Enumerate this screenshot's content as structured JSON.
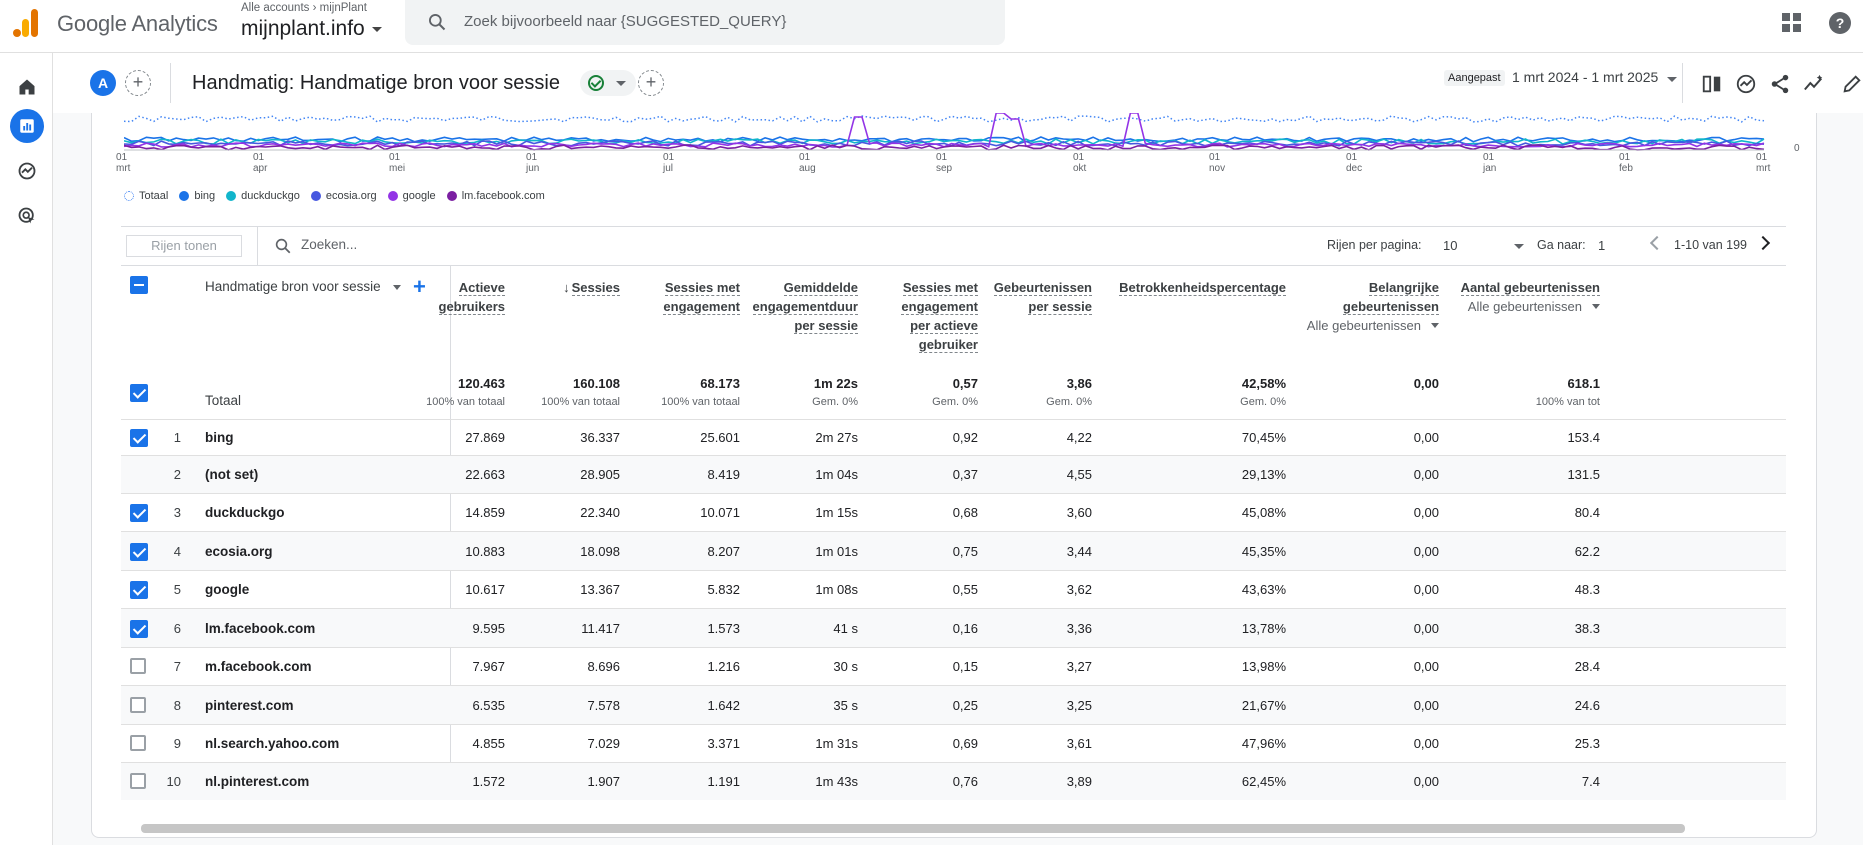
{
  "topbar": {
    "app_title": "Google Analytics",
    "account_crumb": "Alle accounts",
    "property_crumb": "mijnPlant",
    "property_name": "mijnplant.info",
    "search_placeholder": "Zoek bijvoorbeeld naar {SUGGESTED_QUERY}",
    "help_glyph": "?"
  },
  "report": {
    "avatar_letter": "A",
    "add_compare": "+",
    "title": "Handmatig: Handmatige bron voor sessie",
    "add_tab": "+",
    "date_label": "Aangepast",
    "date_range": "1 mrt 2024 - 1 mrt 2025"
  },
  "chart": {
    "y_axis_zero": "0",
    "x_ticks": [
      {
        "day": "01",
        "month": "mrt"
      },
      {
        "day": "01",
        "month": "apr"
      },
      {
        "day": "01",
        "month": "mei"
      },
      {
        "day": "01",
        "month": "jun"
      },
      {
        "day": "01",
        "month": "jul"
      },
      {
        "day": "01",
        "month": "aug"
      },
      {
        "day": "01",
        "month": "sep"
      },
      {
        "day": "01",
        "month": "okt"
      },
      {
        "day": "01",
        "month": "nov"
      },
      {
        "day": "01",
        "month": "dec"
      },
      {
        "day": "01",
        "month": "jan"
      },
      {
        "day": "01",
        "month": "feb"
      },
      {
        "day": "01",
        "month": "mrt"
      }
    ],
    "legend": [
      {
        "name": "Totaal",
        "color": "#4285f4",
        "style": "dotted"
      },
      {
        "name": "bing",
        "color": "#1a73e8",
        "style": "solid"
      },
      {
        "name": "duckduckgo",
        "color": "#12b5cb",
        "style": "solid"
      },
      {
        "name": "ecosia.org",
        "color": "#4758e0",
        "style": "solid"
      },
      {
        "name": "google",
        "color": "#9334e6",
        "style": "solid"
      },
      {
        "name": "lm.facebook.com",
        "color": "#7b1fa2",
        "style": "solid"
      }
    ]
  },
  "toolbar": {
    "rows_button": "Rijen tonen",
    "search_placeholder": "Zoeken...",
    "rows_per_page_label": "Rijen per pagina:",
    "rows_per_page": "10",
    "goto_label": "Ga naar:",
    "goto_value": "1",
    "pages": "1-10 van 199"
  },
  "table": {
    "dimension_header": "Handmatige bron voor sessie",
    "add_dimension": "+",
    "columns": [
      {
        "lines": [
          "Actieve",
          "gebruikers"
        ]
      },
      {
        "lines": [
          "Sessies"
        ],
        "sort": "↓"
      },
      {
        "lines": [
          "Sessies met",
          "engagement"
        ]
      },
      {
        "lines": [
          "Gemiddelde",
          "engagementduur",
          "per sessie"
        ]
      },
      {
        "lines": [
          "Sessies met",
          "engagement",
          "per actieve",
          "gebruiker"
        ]
      },
      {
        "lines": [
          "Gebeurtenissen",
          "per sessie"
        ]
      },
      {
        "lines": [
          "Betrokkenheidspercentage"
        ]
      },
      {
        "lines": [
          "Belangrijke",
          "gebeurtenissen"
        ],
        "sub": "Alle gebeurtenissen"
      },
      {
        "lines": [
          "Aantal gebeurtenissen"
        ],
        "sub": "Alle gebeurtenissen"
      }
    ],
    "total": {
      "label": "Totaal",
      "values": [
        "120.463",
        "160.108",
        "68.173",
        "1m 22s",
        "0,57",
        "3,86",
        "42,58%",
        "0,00",
        "618.1"
      ],
      "subs": [
        "100% van totaal",
        "100% van totaal",
        "100% van totaal",
        "Gem. 0%",
        "Gem. 0%",
        "Gem. 0%",
        "Gem. 0%",
        "",
        "100% van tot"
      ]
    },
    "rows": [
      {
        "idx": "1",
        "name": "bing",
        "checked": "on",
        "values": [
          "27.869",
          "36.337",
          "25.601",
          "2m 27s",
          "0,92",
          "4,22",
          "70,45%",
          "0,00",
          "153.4"
        ]
      },
      {
        "idx": "2",
        "name": "(not set)",
        "checked": "none",
        "values": [
          "22.663",
          "28.905",
          "8.419",
          "1m 04s",
          "0,37",
          "4,55",
          "29,13%",
          "0,00",
          "131.5"
        ]
      },
      {
        "idx": "3",
        "name": "duckduckgo",
        "checked": "on",
        "values": [
          "14.859",
          "22.340",
          "10.071",
          "1m 15s",
          "0,68",
          "3,60",
          "45,08%",
          "0,00",
          "80.4"
        ]
      },
      {
        "idx": "4",
        "name": "ecosia.org",
        "checked": "on",
        "values": [
          "10.883",
          "18.098",
          "8.207",
          "1m 01s",
          "0,75",
          "3,44",
          "45,35%",
          "0,00",
          "62.2"
        ]
      },
      {
        "idx": "5",
        "name": "google",
        "checked": "on",
        "values": [
          "10.617",
          "13.367",
          "5.832",
          "1m 08s",
          "0,55",
          "3,62",
          "43,63%",
          "0,00",
          "48.3"
        ]
      },
      {
        "idx": "6",
        "name": "lm.facebook.com",
        "checked": "on",
        "values": [
          "9.595",
          "11.417",
          "1.573",
          "41 s",
          "0,16",
          "3,36",
          "13,78%",
          "0,00",
          "38.3"
        ]
      },
      {
        "idx": "7",
        "name": "m.facebook.com",
        "checked": "off",
        "values": [
          "7.967",
          "8.696",
          "1.216",
          "30 s",
          "0,15",
          "3,27",
          "13,98%",
          "0,00",
          "28.4"
        ]
      },
      {
        "idx": "8",
        "name": "pinterest.com",
        "checked": "off",
        "values": [
          "6.535",
          "7.578",
          "1.642",
          "35 s",
          "0,25",
          "3,25",
          "21,67%",
          "0,00",
          "24.6"
        ]
      },
      {
        "idx": "9",
        "name": "nl.search.yahoo.com",
        "checked": "off",
        "values": [
          "4.855",
          "7.029",
          "3.371",
          "1m 31s",
          "0,69",
          "3,61",
          "47,96%",
          "0,00",
          "25.3"
        ]
      },
      {
        "idx": "10",
        "name": "nl.pinterest.com",
        "checked": "off",
        "values": [
          "1.572",
          "1.907",
          "1.191",
          "1m 43s",
          "0,76",
          "3,89",
          "62,45%",
          "0,00",
          "7.4"
        ]
      }
    ]
  }
}
